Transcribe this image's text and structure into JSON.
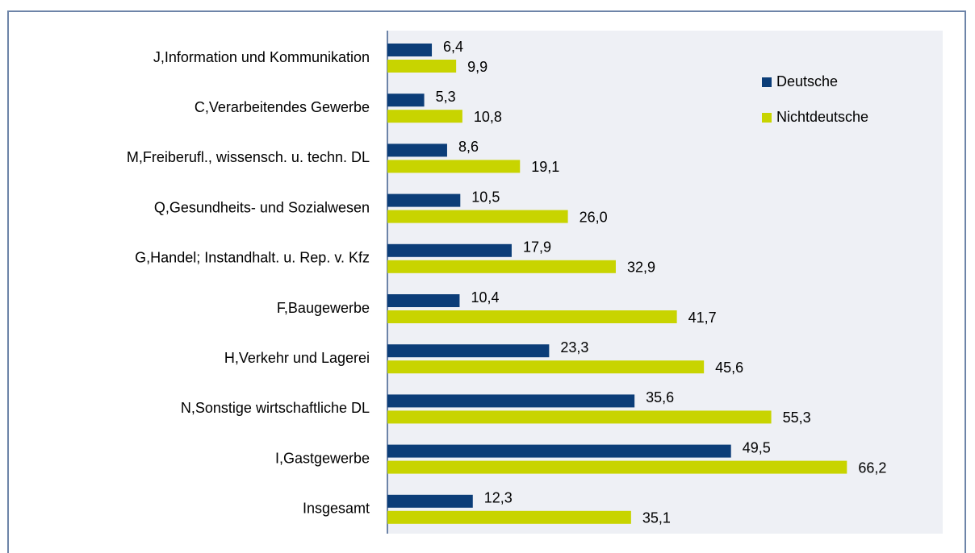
{
  "chart_data": {
    "type": "bar",
    "orientation": "horizontal",
    "categories": [
      "J,Information und Kommunikation",
      "C,Verarbeitendes Gewerbe",
      "M,Freiberufl., wissensch. u. techn. DL",
      "Q,Gesundheits- und Sozialwesen",
      "G,Handel; Instandhalt. u. Rep. v. Kfz",
      "F,Baugewerbe",
      "H,Verkehr und Lagerei",
      "N,Sonstige wirtschaftliche DL",
      "I,Gastgewerbe",
      "Insgesamt"
    ],
    "series": [
      {
        "name": "Deutsche",
        "color": "#0b3d78",
        "values": [
          6.4,
          5.3,
          8.6,
          10.5,
          17.9,
          10.4,
          23.3,
          35.6,
          49.5,
          12.3
        ],
        "value_labels": [
          "6,4",
          "5,3",
          "8,6",
          "10,5",
          "17,9",
          "10,4",
          "23,3",
          "35,6",
          "49,5",
          "12,3"
        ]
      },
      {
        "name": "Nichtdeutsche",
        "color": "#c8d400",
        "values": [
          9.9,
          10.8,
          19.1,
          26.0,
          32.9,
          41.7,
          45.6,
          55.3,
          66.2,
          35.1
        ],
        "value_labels": [
          "9,9",
          "10,8",
          "19,1",
          "26,0",
          "32,9",
          "41,7",
          "45,6",
          "55,3",
          "66,2",
          "35,1"
        ]
      }
    ],
    "xlim": [
      0,
      80
    ],
    "legend": "upper right"
  }
}
